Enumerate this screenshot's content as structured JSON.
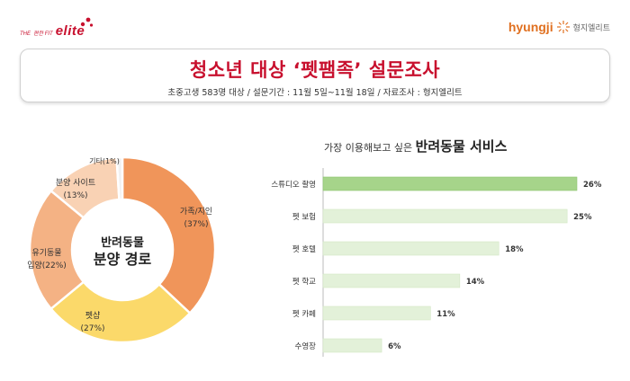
{
  "logo_left": {
    "prefix": "THE",
    "mid": "편한 FIT",
    "brand": "elite",
    "dots_color": "#c8102e"
  },
  "logo_right": {
    "brand": "hyungji",
    "brand_kr": "형지엘리트"
  },
  "header": {
    "title": "청소년 대상 ‘펫팸족’ 설문조사",
    "subtitle": "초중고생 583명 대상 / 설문기간 : 11월 5일~11월 18일 / 자료조사 : 형지엘리트"
  },
  "chart_data": [
    {
      "type": "pie",
      "donut": true,
      "center_label": [
        "반려동물",
        "분양 경로"
      ],
      "slices": [
        {
          "label": "가족/지인",
          "value_label": "(37%)",
          "value": 37,
          "color": "#f0955a"
        },
        {
          "label": "펫샵",
          "value_label": "(27%)",
          "value": 27,
          "color": "#fbd96a"
        },
        {
          "label": "유기동물",
          "value_label": "입양(22%)",
          "value": 22,
          "color": "#f4b284"
        },
        {
          "label": "분양 사이트",
          "value_label": "(13%)",
          "value": 13,
          "color": "#f9d2b4"
        },
        {
          "label": "기타",
          "value_label": "(1%)",
          "value": 1,
          "color": "#f1f1f1"
        }
      ]
    },
    {
      "type": "bar",
      "orientation": "horizontal",
      "title_prefix": "가장 이용해보고 싶은 ",
      "title_bold": "반려동물 서비스",
      "categories": [
        "스튜디오 촬영",
        "펫 보험",
        "펫 호텔",
        "펫 학교",
        "펫 카페",
        "수영장"
      ],
      "values": [
        26,
        25,
        18,
        14,
        11,
        6
      ],
      "value_labels": [
        "26%",
        "25%",
        "18%",
        "14%",
        "11%",
        "6%"
      ],
      "highlight_color": "#a6d48a",
      "bar_color": "#e3f1d9",
      "xlim": [
        0,
        26
      ]
    }
  ]
}
